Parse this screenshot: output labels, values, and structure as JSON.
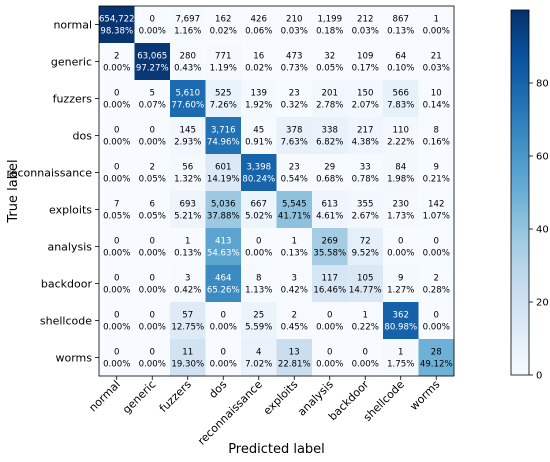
{
  "chart_data": {
    "type": "heatmap",
    "title": "",
    "xlabel": "Predicted label",
    "ylabel": "True label",
    "categories": [
      "normal",
      "generic",
      "fuzzers",
      "dos",
      "reconnaissance",
      "exploits",
      "analysis",
      "backdoor",
      "shellcode",
      "worms"
    ],
    "counts": [
      [
        "654,722",
        "0",
        "7,697",
        "162",
        "426",
        "210",
        "1,199",
        "212",
        "867",
        "1"
      ],
      [
        "2",
        "63,065",
        "280",
        "771",
        "16",
        "473",
        "32",
        "109",
        "64",
        "21"
      ],
      [
        "0",
        "5",
        "5,610",
        "525",
        "139",
        "23",
        "201",
        "150",
        "566",
        "10"
      ],
      [
        "0",
        "0",
        "145",
        "3,716",
        "45",
        "378",
        "338",
        "217",
        "110",
        "8"
      ],
      [
        "0",
        "2",
        "56",
        "601",
        "3,398",
        "23",
        "29",
        "33",
        "84",
        "9"
      ],
      [
        "7",
        "6",
        "693",
        "5,036",
        "667",
        "5,545",
        "613",
        "355",
        "230",
        "142"
      ],
      [
        "0",
        "0",
        "1",
        "413",
        "0",
        "1",
        "269",
        "72",
        "0",
        "0"
      ],
      [
        "0",
        "0",
        "3",
        "464",
        "8",
        "3",
        "117",
        "105",
        "9",
        "2"
      ],
      [
        "0",
        "0",
        "57",
        "0",
        "25",
        "2",
        "0",
        "1",
        "362",
        "0"
      ],
      [
        "0",
        "0",
        "11",
        "0",
        "4",
        "13",
        "0",
        "0",
        "1",
        "28"
      ]
    ],
    "percents": [
      [
        98.38,
        0.0,
        1.16,
        0.02,
        0.06,
        0.03,
        0.18,
        0.03,
        0.13,
        0.0
      ],
      [
        0.0,
        97.27,
        0.43,
        1.19,
        0.02,
        0.73,
        0.05,
        0.17,
        0.1,
        0.03
      ],
      [
        0.0,
        0.07,
        77.6,
        7.26,
        1.92,
        0.32,
        2.78,
        2.07,
        7.83,
        0.14
      ],
      [
        0.0,
        0.0,
        2.93,
        74.96,
        0.91,
        7.63,
        6.82,
        4.38,
        2.22,
        0.16
      ],
      [
        0.0,
        0.05,
        1.32,
        14.19,
        80.24,
        0.54,
        0.68,
        0.78,
        1.98,
        0.21
      ],
      [
        0.05,
        0.05,
        5.21,
        37.88,
        5.02,
        41.71,
        4.61,
        2.67,
        1.73,
        1.07
      ],
      [
        0.0,
        0.0,
        0.13,
        54.63,
        0.0,
        0.13,
        35.58,
        9.52,
        0.0,
        0.0
      ],
      [
        0.0,
        0.0,
        0.42,
        65.26,
        1.13,
        0.42,
        16.46,
        14.77,
        1.27,
        0.28
      ],
      [
        0.0,
        0.0,
        12.75,
        0.0,
        5.59,
        0.45,
        0.0,
        0.22,
        80.98,
        0.0
      ],
      [
        0.0,
        0.0,
        19.3,
        0.0,
        7.02,
        22.81,
        0.0,
        0.0,
        1.75,
        49.12
      ]
    ],
    "colorbar": {
      "min": 0,
      "max": 100,
      "ticks": [
        "0",
        "20",
        "40",
        "60",
        "80"
      ]
    },
    "colormap": [
      "#f7fbff",
      "#deebf7",
      "#c6dbef",
      "#9ecae1",
      "#6baed6",
      "#4292c6",
      "#2171b5",
      "#08519c",
      "#08306b"
    ]
  }
}
